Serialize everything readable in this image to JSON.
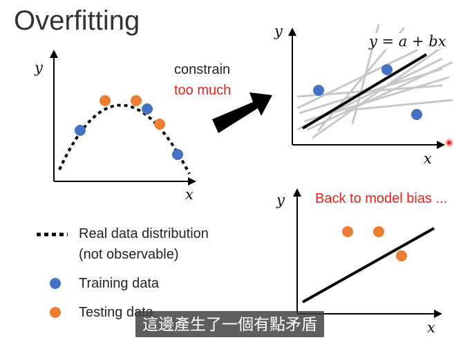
{
  "title": "Overfitting",
  "left_plot": {
    "y_label": "y",
    "x_label": "x"
  },
  "arrow_text": {
    "line1": "constrain",
    "line2": "too much"
  },
  "top_right_plot": {
    "y_label": "y",
    "x_label": "x",
    "equation": "y = a + bx"
  },
  "bottom_right_plot": {
    "y_label": "y",
    "x_label": "x",
    "caption": "Back to model bias ..."
  },
  "legend": {
    "real_line1": "Real data distribution",
    "real_line2": "(not observable)",
    "training": "Training data",
    "testing": "Testing data"
  },
  "subtitle": "這邊產生了一個有點矛盾",
  "colors": {
    "training": "#4472c4",
    "testing": "#ed7d31",
    "caption": "#e8231b",
    "arrow": "#000000"
  }
}
